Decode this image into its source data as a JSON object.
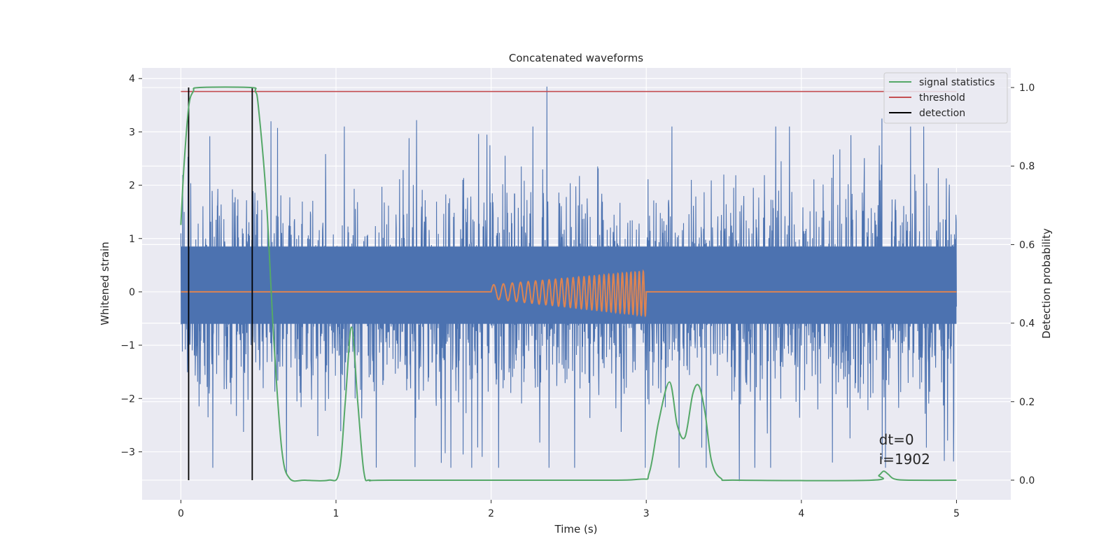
{
  "chart_data": {
    "type": "line",
    "title": "Concatenated waveforms",
    "xlabel": "Time (s)",
    "ylabel_left": "Whitened strain",
    "ylabel_right": "Detection probability",
    "xlim": [
      -0.25,
      5.35
    ],
    "ylim_left": [
      -3.9,
      4.2
    ],
    "ylim_right": [
      -0.05,
      1.05
    ],
    "xticks": [
      0,
      1,
      2,
      3,
      4,
      5
    ],
    "yticks_left": [
      -3,
      -2,
      -1,
      0,
      1,
      2,
      3,
      4
    ],
    "yticks_right": [
      "0.0",
      "0.2",
      "0.4",
      "0.6",
      "0.8",
      "1.0"
    ],
    "grid": true,
    "legend_position": "top-right",
    "colors": {
      "background": "#eaeaf2",
      "strain": "#4c72b0",
      "injection": "#dd8452",
      "signal": "#55a868",
      "threshold": "#c44e52",
      "detection": "#000000"
    },
    "series": [
      {
        "name": "",
        "axis": "left",
        "kind": "noise",
        "x_range": [
          0,
          5
        ],
        "core_band": [
          -0.6,
          0.85
        ],
        "extremes": [
          {
            "x": 2.36,
            "y": 3.85
          },
          {
            "x": 0.58,
            "y": 3.2
          },
          {
            "x": 1.52,
            "y": 3.22
          },
          {
            "x": 4.52,
            "y": 3.25
          },
          {
            "x": 3.6,
            "y": -3.55
          },
          {
            "x": 0.68,
            "y": -3.4
          },
          {
            "x": 4.2,
            "y": -3.2
          },
          {
            "x": 1.82,
            "y": -3.05
          }
        ]
      },
      {
        "name": "",
        "axis": "left",
        "kind": "chirp",
        "x_range": [
          2.0,
          3.0
        ],
        "amplitude_start": 0.13,
        "amplitude_end": 0.42,
        "cycles": 27
      },
      {
        "name": "signal statistics",
        "axis": "right",
        "x": [
          0,
          0.02,
          0.05,
          0.08,
          0.12,
          0.45,
          0.48,
          0.5,
          0.55,
          0.6,
          0.65,
          0.7,
          0.8,
          0.95,
          1.02,
          1.06,
          1.1,
          1.14,
          1.18,
          1.22,
          1.35,
          2.5,
          2.95,
          3.02,
          3.08,
          3.15,
          3.2,
          3.25,
          3.3,
          3.34,
          3.38,
          3.42,
          3.48,
          3.6,
          4.45,
          4.5,
          4.53,
          4.56,
          4.6,
          4.7,
          5.0
        ],
        "y": [
          0.65,
          0.8,
          0.95,
          0.99,
          1.0,
          1.0,
          0.99,
          0.95,
          0.72,
          0.35,
          0.08,
          0.005,
          0.0,
          0.0,
          0.02,
          0.2,
          0.39,
          0.2,
          0.02,
          0.0,
          0.0,
          0.0,
          0.002,
          0.02,
          0.15,
          0.25,
          0.14,
          0.11,
          0.22,
          0.24,
          0.17,
          0.05,
          0.005,
          0.0,
          0.0,
          0.012,
          0.023,
          0.015,
          0.003,
          0.0,
          0.0
        ]
      },
      {
        "name": "threshold",
        "axis": "right",
        "x": [
          0,
          5
        ],
        "y": [
          0.99,
          0.99
        ]
      },
      {
        "name": "detection",
        "axis": "right",
        "vlines": [
          0.05,
          0.46
        ],
        "y_range": [
          0.0,
          1.0
        ]
      }
    ],
    "legend": [
      "signal statistics",
      "threshold",
      "detection"
    ],
    "annotations": {
      "line1": "dt=0",
      "line2": "i=1902",
      "x": 4.5,
      "y_right": 0.105
    }
  }
}
